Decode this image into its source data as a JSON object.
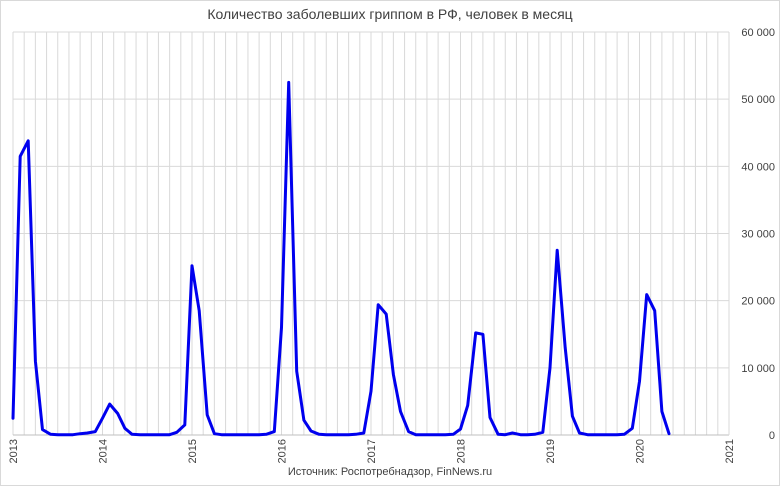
{
  "chart_data": {
    "type": "line",
    "title": "Количество заболевших гриппом в РФ, человек в месяц",
    "source": "Источник: Роспотребнадзор, FinNews.ru",
    "xlabel": "",
    "ylabel": "",
    "y_axis_position": "right",
    "xlim": [
      2013,
      2021
    ],
    "ylim": [
      0,
      60000
    ],
    "grid": true,
    "x_ticks": [
      "2013",
      "2014",
      "2015",
      "2016",
      "2017",
      "2018",
      "2019",
      "2020",
      "2021"
    ],
    "y_ticks": [
      "0",
      "10 000",
      "20 000",
      "30 000",
      "40 000",
      "50 000",
      "60 000"
    ],
    "colors": {
      "series": "#0000ee",
      "grid": "#d9d9d9",
      "text": "#404040"
    },
    "series": [
      {
        "name": "",
        "x": [
          2013.0,
          2013.08,
          2013.17,
          2013.25,
          2013.33,
          2013.42,
          2013.5,
          2013.58,
          2013.67,
          2013.75,
          2013.83,
          2013.92,
          2014.0,
          2014.08,
          2014.17,
          2014.25,
          2014.33,
          2014.42,
          2014.5,
          2014.58,
          2014.67,
          2014.75,
          2014.83,
          2014.92,
          2015.0,
          2015.08,
          2015.17,
          2015.25,
          2015.33,
          2015.42,
          2015.5,
          2015.58,
          2015.67,
          2015.75,
          2015.83,
          2015.92,
          2016.0,
          2016.08,
          2016.17,
          2016.25,
          2016.33,
          2016.42,
          2016.5,
          2016.58,
          2016.67,
          2016.75,
          2016.83,
          2016.92,
          2017.0,
          2017.08,
          2017.17,
          2017.25,
          2017.33,
          2017.42,
          2017.5,
          2017.58,
          2017.67,
          2017.75,
          2017.83,
          2017.92,
          2018.0,
          2018.08,
          2018.17,
          2018.25,
          2018.33,
          2018.42,
          2018.5,
          2018.58,
          2018.67,
          2018.75,
          2018.83,
          2018.92,
          2019.0,
          2019.08,
          2019.17,
          2019.25,
          2019.33,
          2019.42,
          2019.5,
          2019.58,
          2019.67,
          2019.75,
          2019.83,
          2019.92,
          2020.0,
          2020.08,
          2020.17,
          2020.25,
          2020.33
        ],
        "values": [
          2500,
          41500,
          43800,
          11000,
          800,
          100,
          50,
          50,
          50,
          200,
          300,
          500,
          2500,
          4600,
          3200,
          1000,
          100,
          50,
          50,
          50,
          50,
          50,
          400,
          1500,
          25200,
          18500,
          3000,
          200,
          50,
          50,
          50,
          50,
          50,
          50,
          100,
          500,
          16000,
          52500,
          9500,
          2200,
          600,
          100,
          50,
          50,
          50,
          50,
          100,
          300,
          6500,
          19400,
          18000,
          9000,
          3500,
          500,
          50,
          50,
          50,
          50,
          50,
          100,
          900,
          4400,
          15200,
          15000,
          2600,
          100,
          50,
          300,
          50,
          50,
          100,
          400,
          10000,
          27500,
          13000,
          2800,
          300,
          50,
          50,
          50,
          50,
          50,
          100,
          1000,
          8000,
          20900,
          18500,
          3500,
          200
        ]
      }
    ]
  }
}
